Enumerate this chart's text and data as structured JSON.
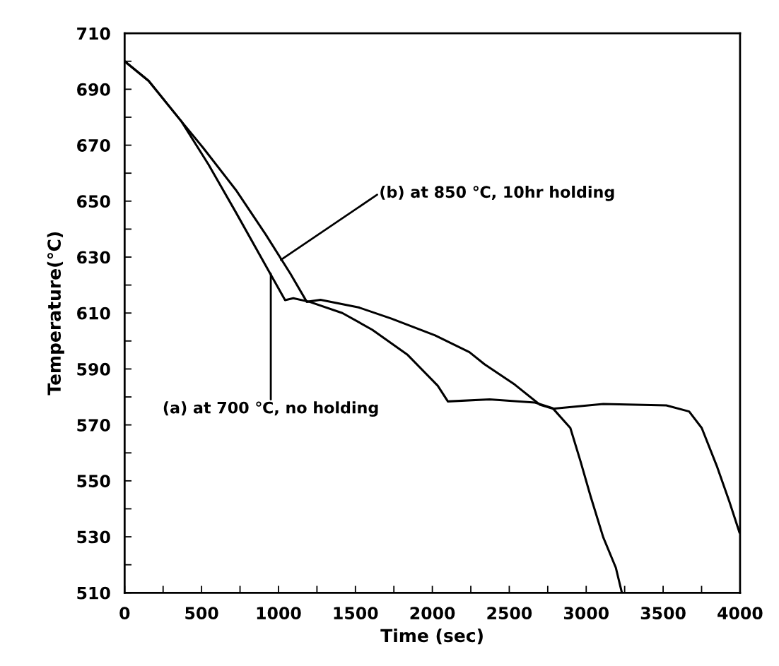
{
  "chart_data": {
    "type": "line",
    "xlabel": "Time (sec)",
    "ylabel": "Temperature(℃)",
    "xlim": [
      0,
      4000
    ],
    "ylim": [
      510,
      710
    ],
    "xticks": [
      0,
      {
        "value": 250,
        "label": null
      },
      500,
      {
        "value": 750,
        "label": null
      },
      1000,
      {
        "value": 1250,
        "label": null
      },
      1500,
      {
        "value": 1750,
        "label": null
      },
      2000,
      {
        "value": 2250,
        "label": null
      },
      2500,
      {
        "value": 2750,
        "label": null
      },
      3000,
      {
        "value": 3250,
        "label": null
      },
      3500,
      {
        "value": 3750,
        "label": null
      },
      4000
    ],
    "yticks": [
      510,
      {
        "value": 520,
        "label": null
      },
      530,
      {
        "value": 540,
        "label": null
      },
      550,
      {
        "value": 560,
        "label": null
      },
      570,
      {
        "value": 580,
        "label": null
      },
      590,
      {
        "value": 600,
        "label": null
      },
      610,
      {
        "value": 620,
        "label": null
      },
      630,
      {
        "value": 640,
        "label": null
      },
      650,
      {
        "value": 660,
        "label": null
      },
      670,
      {
        "value": 680,
        "label": null
      },
      690,
      {
        "value": 700,
        "label": null
      },
      710
    ],
    "grid": false,
    "legend": false,
    "marker": "none",
    "line_style": "solid",
    "series": [
      {
        "color": "#000000",
        "x": [
          0,
          156,
          369,
          546,
          723,
          947,
          1043,
          1096,
          1202,
          1415,
          1610,
          1840,
          2035,
          2101,
          2372,
          2667,
          2782,
          2897,
          2963,
          3029,
          3111,
          3193,
          3232
        ],
        "values": [
          700,
          693,
          678.5,
          663,
          646,
          624,
          614.6,
          615.3,
          614,
          610,
          604,
          595,
          584,
          578.4,
          579.1,
          578,
          576,
          568.9,
          557,
          544.4,
          529.8,
          518.9,
          510
        ]
      },
      {
        "color": "#000000",
        "x": [
          0,
          156,
          369,
          511,
          723,
          918,
          1078,
          1184,
          1273,
          1521,
          1734,
          2018,
          2241,
          2339,
          2536,
          2699,
          2782,
          3111,
          3521,
          3669,
          3751,
          3849,
          3931,
          3996
        ],
        "values": [
          700,
          693,
          678.5,
          669,
          654,
          638,
          624,
          614,
          614.7,
          612,
          608,
          602,
          596,
          591.7,
          584.4,
          577.2,
          575.8,
          577.5,
          577,
          574.8,
          568.9,
          555.3,
          542.5,
          531.6
        ]
      }
    ],
    "annotations": [
      {
        "text": "(b) at 850 ℃, 10hr holding",
        "x": 1016,
        "y": 629
      },
      {
        "text": "(a) at 700 ℃, no holding",
        "x": 950,
        "y": 624
      }
    ]
  }
}
